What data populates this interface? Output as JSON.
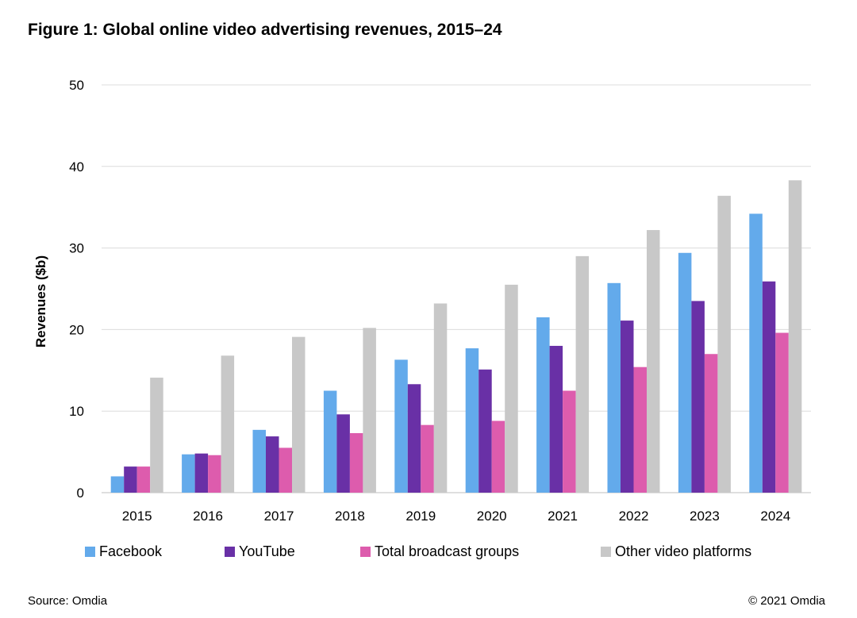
{
  "title": "Figure 1: Global online video advertising revenues, 2015–24",
  "source": "Source: Omdia",
  "copyright": "© 2021 Omdia",
  "colors": {
    "Facebook": "#63aaeb",
    "YouTube": "#6930a6",
    "Total broadcast groups": "#dd5cad",
    "Other video platforms": "#c8c8c8",
    "grid": "#dcdcdc"
  },
  "chart_data": {
    "type": "bar",
    "title": "Figure 1: Global online video advertising revenues, 2015–24",
    "xlabel": "",
    "ylabel": "Revenues ($b)",
    "ylim": [
      0,
      50
    ],
    "yticks": [
      0,
      10,
      20,
      30,
      40,
      50
    ],
    "grid": true,
    "legend_position": "bottom",
    "categories": [
      "2015",
      "2016",
      "2017",
      "2018",
      "2019",
      "2020",
      "2021",
      "2022",
      "2023",
      "2024"
    ],
    "series": [
      {
        "name": "Facebook",
        "values": [
          2.0,
          4.7,
          7.7,
          12.5,
          16.3,
          17.7,
          21.5,
          25.7,
          29.4,
          34.2
        ]
      },
      {
        "name": "YouTube",
        "values": [
          3.2,
          4.8,
          6.9,
          9.6,
          13.3,
          15.1,
          18.0,
          21.1,
          23.5,
          25.9
        ]
      },
      {
        "name": "Total broadcast groups",
        "values": [
          3.2,
          4.6,
          5.5,
          7.3,
          8.3,
          8.8,
          12.5,
          15.4,
          17.0,
          19.6
        ]
      },
      {
        "name": "Other video platforms",
        "values": [
          14.1,
          16.8,
          19.1,
          20.2,
          23.2,
          25.5,
          29.0,
          32.2,
          36.4,
          38.3
        ]
      }
    ]
  }
}
